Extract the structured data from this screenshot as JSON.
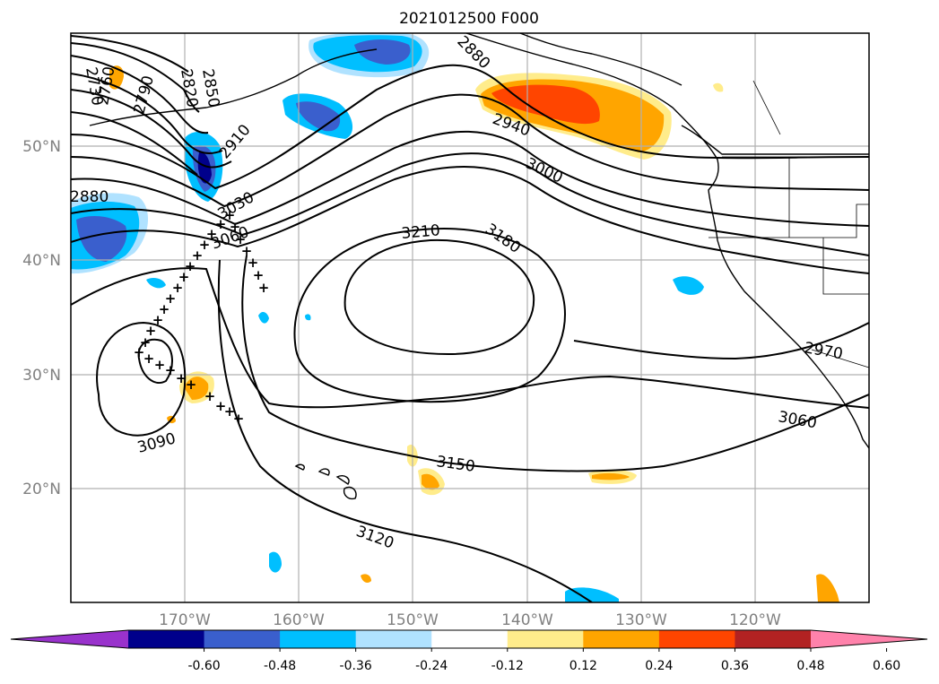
{
  "title": "2021012500 F000",
  "lat_labels": [
    "50°N",
    "40°N",
    "30°N",
    "20°N"
  ],
  "lon_labels": [
    "170°W",
    "160°W",
    "150°W",
    "140°W",
    "130°W",
    "120°W"
  ],
  "contour_labels": [
    "2730",
    "2760",
    "2790",
    "2820",
    "2850",
    "2880",
    "2910",
    "2940",
    "3000",
    "2880",
    "3030",
    "3060",
    "3210",
    "3180",
    "2970",
    "3060",
    "3090",
    "3150",
    "3120"
  ],
  "colorbar": {
    "ticks": [
      "-0.60",
      "-0.48",
      "-0.36",
      "-0.24",
      "-0.12",
      "0.12",
      "0.24",
      "0.36",
      "0.48",
      "0.60"
    ],
    "colors": [
      "#9932cc",
      "#00008b",
      "#3a5fcd",
      "#00bfff",
      "#b0e2ff",
      "#ffffff",
      "#ffec8b",
      "#ffa500",
      "#ff4500",
      "#b22222",
      "#ff82ab"
    ]
  }
}
